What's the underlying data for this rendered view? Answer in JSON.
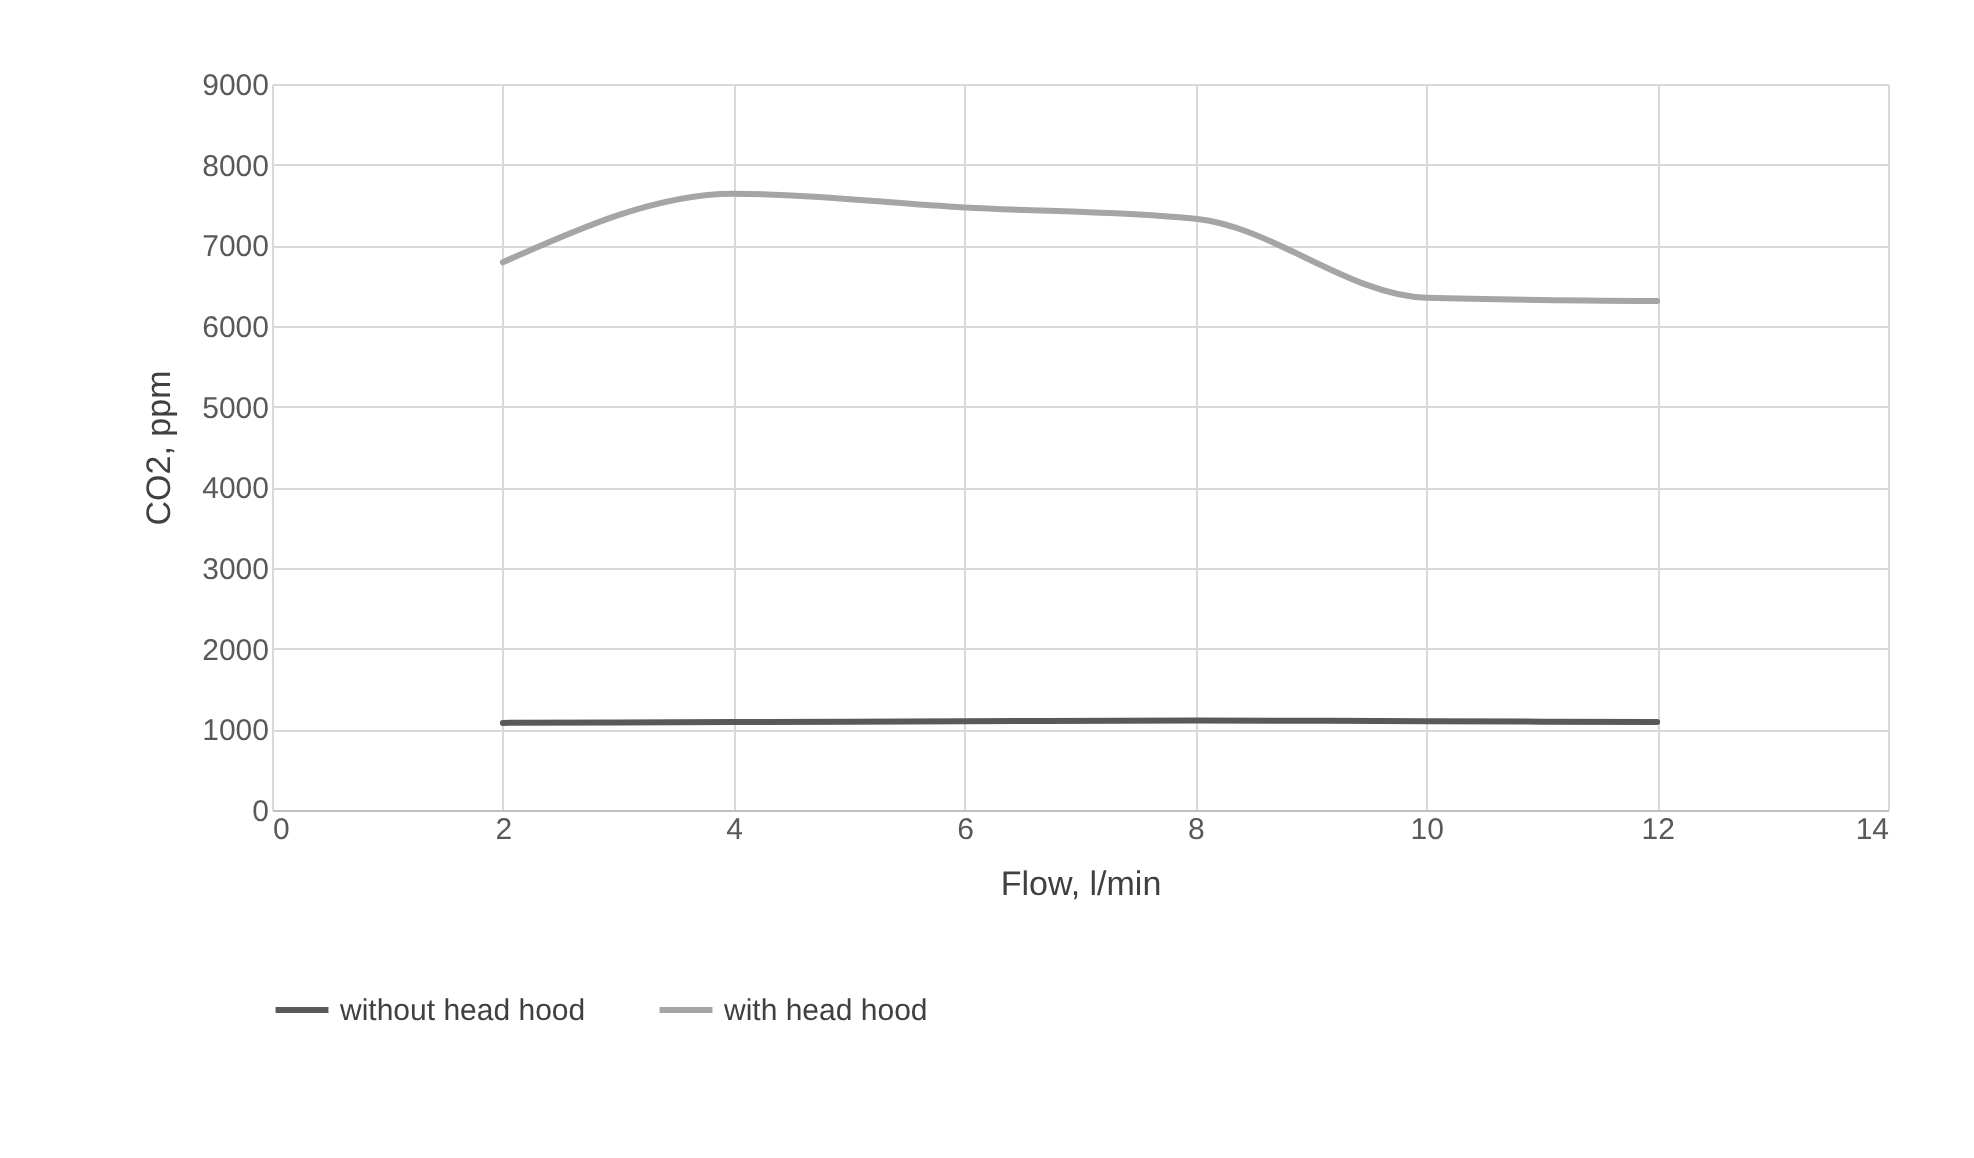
{
  "chart_data": {
    "type": "line",
    "xlabel": "Flow, l/min",
    "ylabel": "CO2, ppm",
    "x": [
      2,
      4,
      6,
      8,
      10,
      12
    ],
    "series": [
      {
        "name": "without head hood",
        "color": "#595959",
        "values": [
          1080,
          1090,
          1100,
          1110,
          1100,
          1090
        ]
      },
      {
        "name": "with head hood",
        "color": "#a5a5a5",
        "values": [
          6790,
          7640,
          7470,
          7330,
          6350,
          6310
        ]
      }
    ],
    "xlim": [
      0,
      14
    ],
    "xticks": [
      0,
      2,
      4,
      6,
      8,
      10,
      12,
      14
    ],
    "ylim": [
      0,
      9000
    ],
    "yticks": [
      0,
      1000,
      2000,
      3000,
      4000,
      5000,
      6000,
      7000,
      8000,
      9000
    ],
    "grid": true,
    "legend": "bottom",
    "marker": "none",
    "line_style": "solid"
  }
}
